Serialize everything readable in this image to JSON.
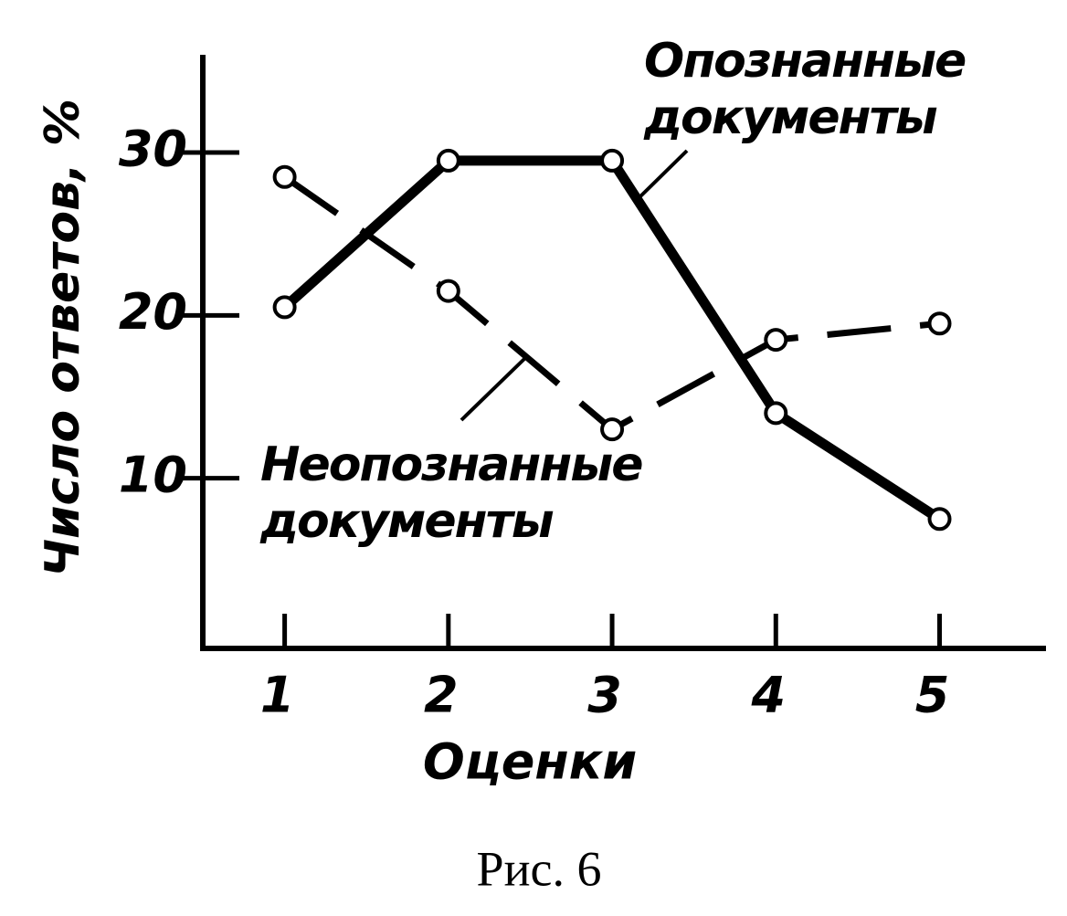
{
  "chart_data": {
    "type": "line",
    "y_label": "Число ответов, %",
    "x_label": "Оценки",
    "caption": "Рис. 6",
    "x": [
      1,
      2,
      3,
      4,
      5
    ],
    "xlim": [
      0.5,
      5.65
    ],
    "xticks": [
      1,
      2,
      3,
      4,
      5
    ],
    "ylim": [
      0,
      36
    ],
    "yticks": [
      10,
      20,
      30
    ],
    "series": [
      {
        "name": "Опознанные документы",
        "color": "#000000",
        "linestyle": "solid",
        "values": [
          20.5,
          29.5,
          29.5,
          14,
          7.5
        ]
      },
      {
        "name": "Неопознанные документы",
        "color": "#000000",
        "linestyle": "dashed",
        "values": [
          28.5,
          21.5,
          13,
          18.5,
          19.5
        ]
      }
    ]
  }
}
